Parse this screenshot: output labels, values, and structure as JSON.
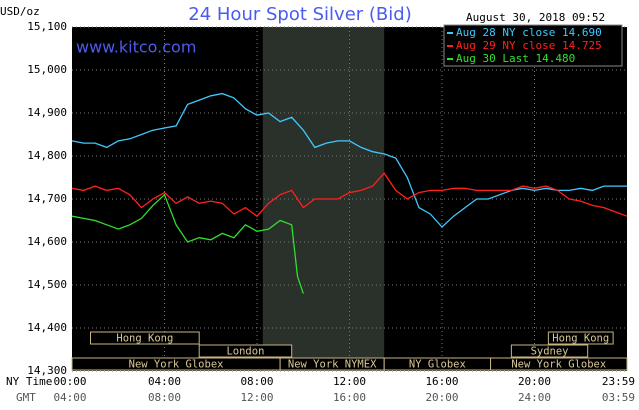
{
  "chart_data": {
    "type": "line",
    "title": "24 Hour Spot Silver (Bid)",
    "site": "www.kitco.com",
    "timestamp": "August 30, 2018 09:52",
    "ylabel": "USD/oz",
    "xlabel_rows": [
      "NY Time",
      "GMT"
    ],
    "xlim": [
      0,
      24
    ],
    "xticks": [
      {
        "value": 0,
        "label": "00:00"
      },
      {
        "value": 4,
        "label": "04:00"
      },
      {
        "value": 8,
        "label": "08:00"
      },
      {
        "value": 12,
        "label": "12:00"
      },
      {
        "value": 16,
        "label": "16:00"
      },
      {
        "value": 20,
        "label": "20:00"
      },
      {
        "value": 23.98,
        "label": "23:59"
      }
    ],
    "gmt_tick_labels": [
      "04:00",
      "08:00",
      "12:00",
      "16:00",
      "20:00",
      "24:00",
      "03:59"
    ],
    "ylim": [
      14.3,
      15.1
    ],
    "yticks": [
      {
        "value": 14.3,
        "label": "14,300"
      },
      {
        "value": 14.4,
        "label": "14,400"
      },
      {
        "value": 14.5,
        "label": "14,500"
      },
      {
        "value": 14.6,
        "label": "14,600"
      },
      {
        "value": 14.7,
        "label": "14,700"
      },
      {
        "value": 14.8,
        "label": "14,800"
      },
      {
        "value": 14.9,
        "label": "14,900"
      },
      {
        "value": 15.0,
        "label": "15,000"
      },
      {
        "value": 15.1,
        "label": "15,100"
      }
    ],
    "grid": true,
    "highlight_range": [
      8.25,
      13.5
    ],
    "sessions": [
      {
        "label": "Hong Kong",
        "start": 0.8,
        "end": 5.5
      },
      {
        "label": "Hong Kong",
        "start": 20.6,
        "end": 23.4
      },
      {
        "label": "London",
        "start": 5.5,
        "end": 9.5
      },
      {
        "label": "Sydney",
        "start": 19.0,
        "end": 22.3
      },
      {
        "label": "New York Globex",
        "start": 0,
        "end": 9.0
      },
      {
        "label": "New York NYMEX",
        "start": 9.0,
        "end": 13.5
      },
      {
        "label": "NY Globex",
        "start": 13.5,
        "end": 18.1
      },
      {
        "label": "New York Globex",
        "start": 18.1,
        "end": 24
      }
    ],
    "series": [
      {
        "name": "Aug 28 NY close 14.690",
        "color": "#40c8ff",
        "x": [
          0,
          0.5,
          1,
          1.5,
          2,
          2.5,
          3,
          3.5,
          4,
          4.5,
          5,
          5.5,
          6,
          6.5,
          7,
          7.5,
          8,
          8.5,
          9,
          9.5,
          10,
          10.5,
          11,
          11.5,
          12,
          12.5,
          13,
          13.5,
          14,
          14.5,
          15,
          15.5,
          16,
          16.5,
          17,
          17.5,
          18,
          18.5,
          19,
          19.5,
          20,
          20.5,
          21,
          21.5,
          22,
          22.5,
          23,
          23.5,
          24
        ],
        "values": [
          14.835,
          14.83,
          14.83,
          14.82,
          14.835,
          14.84,
          14.85,
          14.86,
          14.865,
          14.87,
          14.92,
          14.93,
          14.94,
          14.945,
          14.935,
          14.91,
          14.895,
          14.9,
          14.88,
          14.89,
          14.86,
          14.82,
          14.83,
          14.835,
          14.835,
          14.82,
          14.81,
          14.805,
          14.795,
          14.75,
          14.68,
          14.665,
          14.635,
          14.66,
          14.68,
          14.7,
          14.7,
          14.71,
          14.72,
          14.725,
          14.72,
          14.725,
          14.72,
          14.72,
          14.725,
          14.72,
          14.73,
          14.73,
          14.73
        ]
      },
      {
        "name": "Aug 29 NY close 14.725",
        "color": "#ff2020",
        "x": [
          0,
          0.5,
          1,
          1.5,
          2,
          2.5,
          3,
          3.5,
          4,
          4.5,
          5,
          5.5,
          6,
          6.5,
          7,
          7.5,
          8,
          8.5,
          9,
          9.5,
          10,
          10.5,
          11,
          11.5,
          12,
          12.5,
          13,
          13.5,
          14,
          14.5,
          15,
          15.5,
          16,
          16.5,
          17,
          17.5,
          18,
          18.5,
          19,
          19.5,
          20,
          20.5,
          21,
          21.5,
          22,
          22.5,
          23,
          23.5,
          24
        ],
        "values": [
          14.725,
          14.72,
          14.73,
          14.72,
          14.725,
          14.71,
          14.68,
          14.7,
          14.715,
          14.69,
          14.705,
          14.69,
          14.695,
          14.69,
          14.665,
          14.68,
          14.66,
          14.69,
          14.71,
          14.72,
          14.68,
          14.7,
          14.7,
          14.7,
          14.715,
          14.72,
          14.73,
          14.76,
          14.72,
          14.7,
          14.715,
          14.72,
          14.72,
          14.725,
          14.725,
          14.72,
          14.72,
          14.72,
          14.72,
          14.73,
          14.725,
          14.73,
          14.72,
          14.7,
          14.695,
          14.685,
          14.68,
          14.67,
          14.66
        ]
      },
      {
        "name": "Aug 30 Last 14.480",
        "color": "#30e030",
        "x": [
          0,
          0.5,
          1,
          1.5,
          2,
          2.5,
          3,
          3.5,
          4,
          4.5,
          5,
          5.5,
          6,
          6.5,
          7,
          7.5,
          8,
          8.5,
          9,
          9.5,
          9.75,
          10
        ],
        "values": [
          14.66,
          14.655,
          14.65,
          14.64,
          14.63,
          14.64,
          14.655,
          14.685,
          14.71,
          14.64,
          14.6,
          14.61,
          14.605,
          14.62,
          14.61,
          14.64,
          14.625,
          14.63,
          14.65,
          14.64,
          14.52,
          14.48
        ]
      }
    ]
  }
}
